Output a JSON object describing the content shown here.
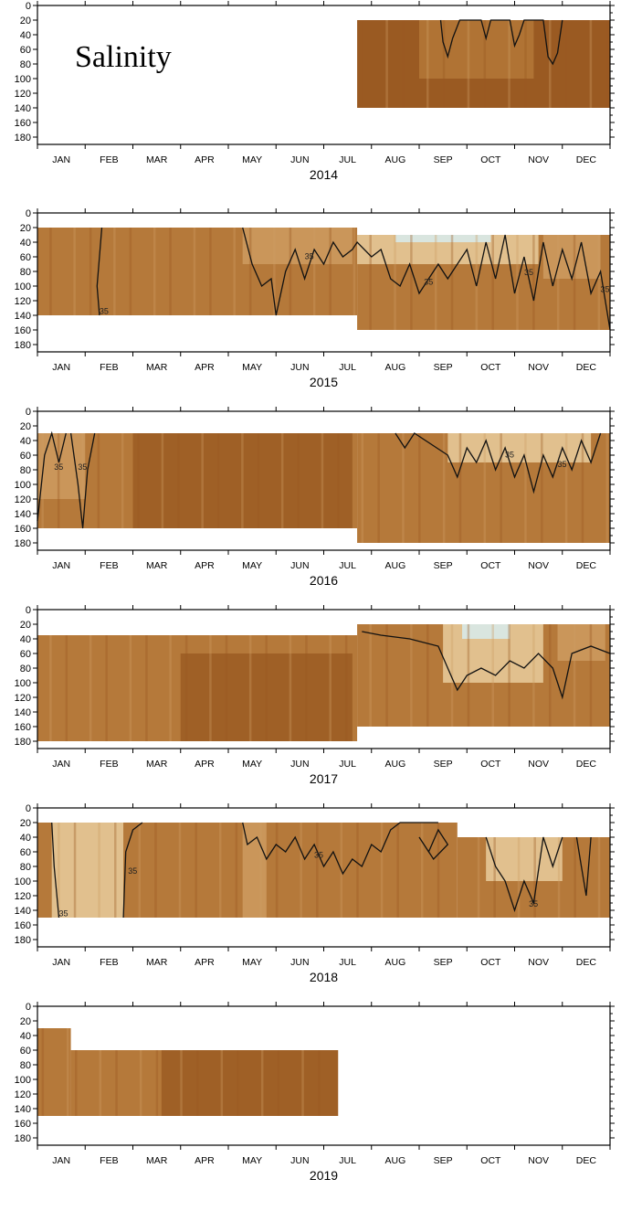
{
  "chart_data": {
    "type": "heatmap",
    "title": "Salinity",
    "y_ticks": [
      0,
      20,
      40,
      60,
      80,
      100,
      120,
      140,
      160,
      180
    ],
    "ylim": [
      0,
      190
    ],
    "months": [
      "JAN",
      "FEB",
      "MAR",
      "APR",
      "MAY",
      "JUN",
      "JUL",
      "AUG",
      "SEP",
      "OCT",
      "NOV",
      "DEC"
    ],
    "contour_label": "35",
    "colors": {
      "dark": "#9a5a22",
      "mid": "#b5793a",
      "light": "#cf9e63",
      "pale": "#ecd2a4",
      "fresh": "#d7eef4",
      "contour": "#111111",
      "frame": "#000000"
    },
    "panels": [
      {
        "year": "2014",
        "segments": [
          {
            "start_month": 6.7,
            "end_month": 12.0,
            "top": 20,
            "bottom": 140,
            "color": "dark"
          }
        ],
        "pale_patches": [
          {
            "start_month": 8.0,
            "end_month": 10.4,
            "top": 20,
            "bottom": 100,
            "color": "mid"
          }
        ],
        "contour": [
          [
            8.45,
            20
          ],
          [
            8.5,
            50
          ],
          [
            8.6,
            70
          ],
          [
            8.7,
            45
          ],
          [
            8.85,
            20
          ],
          [
            9.3,
            20
          ],
          [
            9.4,
            45
          ],
          [
            9.5,
            20
          ],
          [
            9.9,
            20
          ],
          [
            10.0,
            55
          ],
          [
            10.1,
            40
          ],
          [
            10.2,
            20
          ],
          [
            10.6,
            20
          ],
          [
            10.7,
            70
          ],
          [
            10.8,
            80
          ],
          [
            10.9,
            65
          ],
          [
            11.0,
            20
          ]
        ],
        "iso_labels": []
      },
      {
        "year": "2015",
        "segments": [
          {
            "start_month": 0.0,
            "end_month": 6.7,
            "top": 20,
            "bottom": 140,
            "color": "mid"
          },
          {
            "start_month": 6.7,
            "end_month": 12.0,
            "top": 30,
            "bottom": 160,
            "color": "mid"
          }
        ],
        "pale_patches": [
          {
            "start_month": 4.3,
            "end_month": 6.6,
            "top": 20,
            "bottom": 70,
            "color": "light"
          },
          {
            "start_month": 6.7,
            "end_month": 10.5,
            "top": 30,
            "bottom": 70,
            "color": "pale"
          },
          {
            "start_month": 7.5,
            "end_month": 9.5,
            "top": 30,
            "bottom": 40,
            "color": "fresh"
          },
          {
            "start_month": 10.6,
            "end_month": 11.8,
            "top": 30,
            "bottom": 90,
            "color": "light"
          }
        ],
        "contour": [
          [
            4.3,
            20
          ],
          [
            4.5,
            70
          ],
          [
            4.7,
            100
          ],
          [
            4.9,
            90
          ],
          [
            5.0,
            140
          ],
          [
            5.2,
            80
          ],
          [
            5.4,
            50
          ],
          [
            5.6,
            90
          ],
          [
            5.8,
            50
          ],
          [
            6.0,
            70
          ],
          [
            6.2,
            40
          ],
          [
            6.4,
            60
          ],
          [
            6.6,
            50
          ],
          [
            6.7,
            40
          ],
          [
            7.0,
            60
          ],
          [
            7.2,
            50
          ],
          [
            7.4,
            90
          ],
          [
            7.6,
            100
          ],
          [
            7.8,
            70
          ],
          [
            8.0,
            110
          ],
          [
            8.2,
            90
          ],
          [
            8.4,
            70
          ],
          [
            8.6,
            90
          ],
          [
            8.8,
            70
          ],
          [
            9.0,
            50
          ],
          [
            9.2,
            100
          ],
          [
            9.4,
            40
          ],
          [
            9.6,
            90
          ],
          [
            9.8,
            30
          ],
          [
            10.0,
            110
          ],
          [
            10.2,
            60
          ],
          [
            10.4,
            120
          ],
          [
            10.6,
            40
          ],
          [
            10.8,
            100
          ],
          [
            11.0,
            50
          ],
          [
            11.2,
            90
          ],
          [
            11.4,
            40
          ],
          [
            11.6,
            110
          ],
          [
            11.8,
            80
          ],
          [
            12.0,
            160
          ]
        ],
        "iso_labels": [
          {
            "month": 1.3,
            "depth": 138,
            "text": "35"
          },
          {
            "month": 5.6,
            "depth": 63,
            "text": "35"
          },
          {
            "month": 8.1,
            "depth": 98,
            "text": "35"
          },
          {
            "month": 10.2,
            "depth": 85,
            "text": "35"
          },
          {
            "month": 11.8,
            "depth": 108,
            "text": "35"
          }
        ],
        "extra_contours": [
          [
            [
              1.35,
              20
            ],
            [
              1.3,
              60
            ],
            [
              1.25,
              100
            ],
            [
              1.3,
              140
            ]
          ]
        ]
      },
      {
        "year": "2016",
        "segments": [
          {
            "start_month": 0.0,
            "end_month": 6.7,
            "top": 30,
            "bottom": 160,
            "color": "mid"
          },
          {
            "start_month": 6.7,
            "end_month": 12.0,
            "top": 30,
            "bottom": 180,
            "color": "mid"
          }
        ],
        "pale_patches": [
          {
            "start_month": 0.0,
            "end_month": 1.0,
            "top": 30,
            "bottom": 120,
            "color": "light"
          },
          {
            "start_month": 8.6,
            "end_month": 11.6,
            "top": 30,
            "bottom": 70,
            "color": "pale"
          },
          {
            "start_month": 2.0,
            "end_month": 6.6,
            "top": 30,
            "bottom": 160,
            "color": "dark"
          }
        ],
        "contour": [
          [
            7.5,
            30
          ],
          [
            7.7,
            50
          ],
          [
            7.9,
            30
          ],
          [
            8.6,
            60
          ],
          [
            8.8,
            90
          ],
          [
            9.0,
            50
          ],
          [
            9.2,
            70
          ],
          [
            9.4,
            40
          ],
          [
            9.6,
            80
          ],
          [
            9.8,
            50
          ],
          [
            10.0,
            90
          ],
          [
            10.2,
            60
          ],
          [
            10.4,
            110
          ],
          [
            10.6,
            60
          ],
          [
            10.8,
            90
          ],
          [
            11.0,
            50
          ],
          [
            11.2,
            80
          ],
          [
            11.4,
            40
          ],
          [
            11.6,
            70
          ],
          [
            11.8,
            30
          ]
        ],
        "iso_labels": [
          {
            "month": 0.35,
            "depth": 80,
            "text": "35"
          },
          {
            "month": 0.85,
            "depth": 80,
            "text": "35"
          },
          {
            "month": 9.8,
            "depth": 63,
            "text": "35"
          },
          {
            "month": 10.9,
            "depth": 76,
            "text": "35"
          }
        ],
        "extra_contours": [
          [
            [
              0.0,
              150
            ],
            [
              0.15,
              60
            ],
            [
              0.3,
              30
            ],
            [
              0.45,
              70
            ],
            [
              0.6,
              30
            ]
          ],
          [
            [
              0.7,
              30
            ],
            [
              0.85,
              100
            ],
            [
              0.95,
              160
            ],
            [
              1.05,
              80
            ],
            [
              1.2,
              30
            ]
          ]
        ]
      },
      {
        "year": "2017",
        "segments": [
          {
            "start_month": 0.0,
            "end_month": 6.7,
            "top": 35,
            "bottom": 180,
            "color": "mid"
          },
          {
            "start_month": 6.7,
            "end_month": 12.0,
            "top": 20,
            "bottom": 160,
            "color": "mid"
          }
        ],
        "pale_patches": [
          {
            "start_month": 3.0,
            "end_month": 6.6,
            "top": 60,
            "bottom": 180,
            "color": "dark"
          },
          {
            "start_month": 8.5,
            "end_month": 10.6,
            "top": 20,
            "bottom": 100,
            "color": "pale"
          },
          {
            "start_month": 8.9,
            "end_month": 9.9,
            "top": 20,
            "bottom": 40,
            "color": "fresh"
          },
          {
            "start_month": 10.9,
            "end_month": 11.9,
            "top": 20,
            "bottom": 70,
            "color": "light"
          }
        ],
        "contour": [
          [
            6.8,
            30
          ],
          [
            7.2,
            35
          ],
          [
            7.8,
            40
          ],
          [
            8.4,
            50
          ],
          [
            8.6,
            80
          ],
          [
            8.8,
            110
          ],
          [
            9.0,
            90
          ],
          [
            9.3,
            80
          ],
          [
            9.6,
            90
          ],
          [
            9.9,
            70
          ],
          [
            10.2,
            80
          ],
          [
            10.5,
            60
          ],
          [
            10.8,
            80
          ],
          [
            11.0,
            120
          ],
          [
            11.2,
            60
          ],
          [
            11.6,
            50
          ],
          [
            12.0,
            60
          ]
        ],
        "iso_labels": []
      },
      {
        "year": "2018",
        "segments": [
          {
            "start_month": 0.0,
            "end_month": 8.8,
            "top": 20,
            "bottom": 150,
            "color": "mid"
          },
          {
            "start_month": 8.8,
            "end_month": 12.0,
            "top": 40,
            "bottom": 150,
            "color": "mid"
          }
        ],
        "pale_patches": [
          {
            "start_month": 0.3,
            "end_month": 1.8,
            "top": 20,
            "bottom": 150,
            "color": "pale"
          },
          {
            "start_month": 4.3,
            "end_month": 4.8,
            "top": 20,
            "bottom": 150,
            "color": "light"
          },
          {
            "start_month": 9.4,
            "end_month": 11.0,
            "top": 40,
            "bottom": 100,
            "color": "pale"
          }
        ],
        "contour": [
          [
            4.3,
            20
          ],
          [
            4.4,
            50
          ],
          [
            4.6,
            40
          ],
          [
            4.8,
            70
          ],
          [
            5.0,
            50
          ],
          [
            5.2,
            60
          ],
          [
            5.4,
            40
          ],
          [
            5.6,
            70
          ],
          [
            5.8,
            50
          ],
          [
            6.0,
            80
          ],
          [
            6.2,
            60
          ],
          [
            6.4,
            90
          ],
          [
            6.6,
            70
          ],
          [
            6.8,
            80
          ],
          [
            7.0,
            50
          ],
          [
            7.2,
            60
          ],
          [
            7.4,
            30
          ],
          [
            7.6,
            20
          ],
          [
            8.0,
            20
          ],
          [
            8.4,
            20
          ]
        ],
        "iso_labels": [
          {
            "month": 0.45,
            "depth": 148,
            "text": "35"
          },
          {
            "month": 1.9,
            "depth": 90,
            "text": "35"
          },
          {
            "month": 5.8,
            "depth": 68,
            "text": "35"
          },
          {
            "month": 10.3,
            "depth": 135,
            "text": "35"
          }
        ],
        "extra_contours": [
          [
            [
              0.3,
              20
            ],
            [
              0.35,
              80
            ],
            [
              0.45,
              150
            ]
          ],
          [
            [
              1.8,
              150
            ],
            [
              1.85,
              60
            ],
            [
              2.0,
              30
            ],
            [
              2.2,
              20
            ]
          ],
          [
            [
              9.4,
              40
            ],
            [
              9.6,
              80
            ],
            [
              9.8,
              100
            ],
            [
              10.0,
              140
            ],
            [
              10.2,
              100
            ],
            [
              10.4,
              130
            ],
            [
              10.6,
              40
            ],
            [
              10.8,
              80
            ],
            [
              11.0,
              40
            ]
          ],
          [
            [
              11.3,
              40
            ],
            [
              11.4,
              80
            ],
            [
              11.5,
              120
            ],
            [
              11.6,
              40
            ]
          ],
          [
            [
              8.0,
              40
            ],
            [
              8.2,
              60
            ],
            [
              8.4,
              30
            ],
            [
              8.6,
              50
            ],
            [
              8.3,
              70
            ],
            [
              8.0,
              40
            ]
          ]
        ]
      },
      {
        "year": "2019",
        "segments": [
          {
            "start_month": 0.0,
            "end_month": 0.7,
            "top": 30,
            "bottom": 150,
            "color": "mid"
          },
          {
            "start_month": 0.7,
            "end_month": 6.3,
            "top": 60,
            "bottom": 150,
            "color": "mid"
          }
        ],
        "pale_patches": [
          {
            "start_month": 2.6,
            "end_month": 6.3,
            "top": 60,
            "bottom": 150,
            "color": "dark"
          }
        ],
        "contour": [],
        "iso_labels": []
      }
    ]
  }
}
